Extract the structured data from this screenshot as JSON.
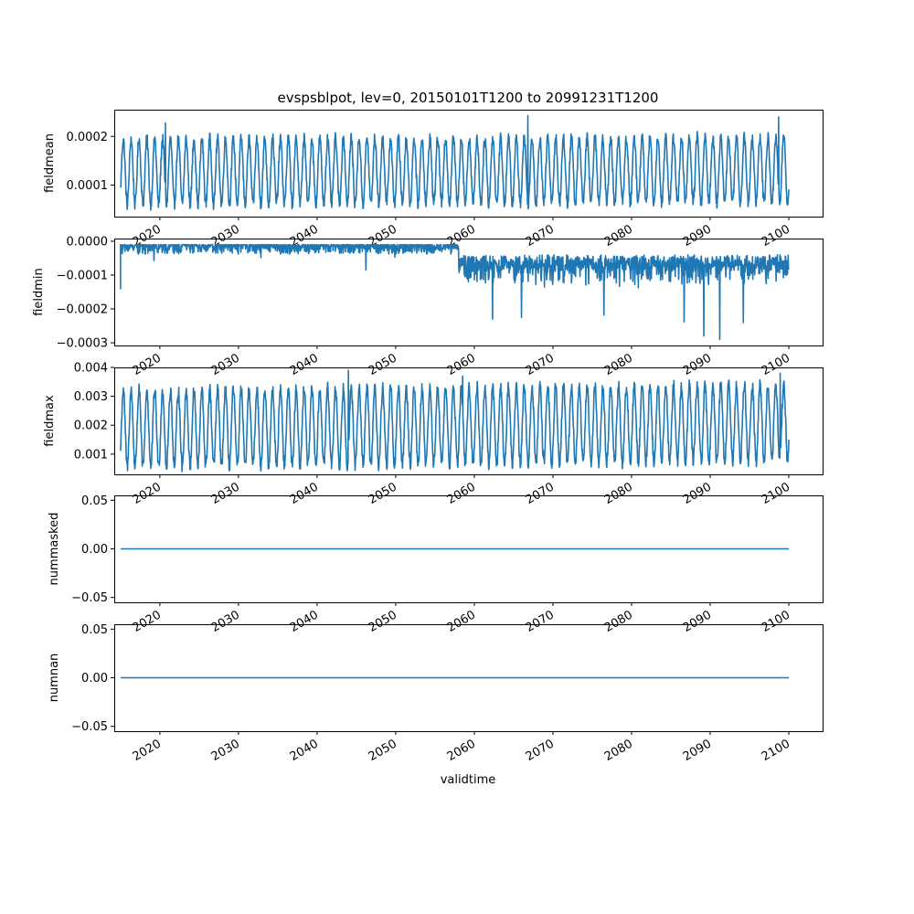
{
  "chart_data": {
    "type": "line",
    "title": "evspsblpot, lev=0, 20150101T1200 to 20991231T1200",
    "xlabel": "validtime",
    "x_range": [
      "2015-01-01",
      "2099-12-31"
    ],
    "xlim": [
      2014.2,
      2104.3
    ],
    "x_ticks": [
      "2020",
      "2030",
      "2040",
      "2050",
      "2060",
      "2070",
      "2080",
      "2090",
      "2100"
    ],
    "line_color": "#1f77b4",
    "grid": false,
    "panels": [
      {
        "ylabel": "fieldmean",
        "ylim": [
          3.5e-05,
          0.000255
        ],
        "y_ticks": [
          {
            "value": 0.0001,
            "label": "0.0001"
          },
          {
            "value": 0.0002,
            "label": "0.0002"
          }
        ],
        "pattern": "seasonal",
        "seasonal_min": 6e-05,
        "seasonal_max": 0.000195,
        "trend_per_year": 5e-08,
        "noise": 1.2e-05,
        "spikes": [
          {
            "x": 2020.7,
            "y": 0.000228
          },
          {
            "x": 2066.8,
            "y": 0.000243
          },
          {
            "x": 2098.7,
            "y": 0.00024
          }
        ],
        "series": [
          {
            "name": "",
            "values_described_by": "pattern"
          }
        ]
      },
      {
        "ylabel": "fieldmin",
        "ylim": [
          -0.000308,
          8e-06
        ],
        "y_ticks": [
          {
            "value": 0.0,
            "label": "0.0000"
          },
          {
            "value": -0.0001,
            "label": "−0.0001"
          },
          {
            "value": -0.0002,
            "label": "−0.0002"
          },
          {
            "value": -0.0003,
            "label": "−0.0003"
          }
        ],
        "pattern": "regime",
        "start_value": -0.00014,
        "regime_change_year": 2058,
        "before_level": -1e-05,
        "after_level": -6e-05,
        "spikes": [
          {
            "x": 2015.0,
            "y": -0.000142
          },
          {
            "x": 2046.2,
            "y": -8.5e-05
          },
          {
            "x": 2062.3,
            "y": -0.00023
          },
          {
            "x": 2066.0,
            "y": -0.000225
          },
          {
            "x": 2076.5,
            "y": -0.000218
          },
          {
            "x": 2086.7,
            "y": -0.000238
          },
          {
            "x": 2089.2,
            "y": -0.00028
          },
          {
            "x": 2091.2,
            "y": -0.00029
          },
          {
            "x": 2094.2,
            "y": -0.00024
          }
        ],
        "series": [
          {
            "name": "",
            "values_described_by": "pattern"
          }
        ]
      },
      {
        "ylabel": "fieldmax",
        "ylim": [
          0.0003,
          0.004
        ],
        "y_ticks": [
          {
            "value": 0.001,
            "label": "0.001"
          },
          {
            "value": 0.002,
            "label": "0.002"
          },
          {
            "value": 0.003,
            "label": "0.003"
          },
          {
            "value": 0.004,
            "label": "0.004"
          }
        ],
        "pattern": "seasonal",
        "seasonal_min": 0.00055,
        "seasonal_max": 0.0032,
        "trend_per_year": 2.5e-06,
        "noise": 0.00022,
        "spikes": [
          {
            "x": 2044.0,
            "y": 0.0039
          },
          {
            "x": 2058.5,
            "y": 0.0037
          },
          {
            "x": 2098.9,
            "y": 0.0038
          }
        ],
        "series": [
          {
            "name": "",
            "values_described_by": "pattern"
          }
        ]
      },
      {
        "ylabel": "nummasked",
        "ylim": [
          -0.055,
          0.055
        ],
        "y_ticks": [
          {
            "value": 0.05,
            "label": "0.05"
          },
          {
            "value": 0.0,
            "label": "0.00"
          },
          {
            "value": -0.05,
            "label": "−0.05"
          }
        ],
        "pattern": "constant",
        "constant": 0.0,
        "series": [
          {
            "name": "",
            "values_described_by": "pattern"
          }
        ]
      },
      {
        "ylabel": "numnan",
        "ylim": [
          -0.055,
          0.055
        ],
        "y_ticks": [
          {
            "value": 0.05,
            "label": "0.05"
          },
          {
            "value": 0.0,
            "label": "0.00"
          },
          {
            "value": -0.05,
            "label": "−0.05"
          }
        ],
        "pattern": "constant",
        "constant": 0.0,
        "series": [
          {
            "name": "",
            "values_described_by": "pattern"
          }
        ]
      }
    ]
  }
}
